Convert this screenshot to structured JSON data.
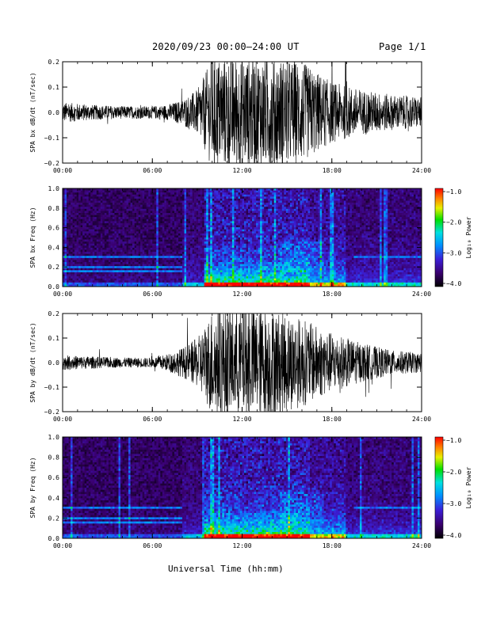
{
  "header": {
    "title": "2020/09/23  00:00–24:00 UT",
    "page": "Page 1/1"
  },
  "xlabel": "Universal Time (hh:mm)",
  "colors": {
    "trace": "#000000",
    "background": "#ffffff"
  },
  "chart_data": [
    {
      "type": "line",
      "name": "bx-waveform",
      "ylabel": "SPA bx dB/dt (nT/sec)",
      "xlim": [
        0,
        24
      ],
      "ylim": [
        -0.2,
        0.2
      ],
      "xticks": [
        "00:00",
        "06:00",
        "12:00",
        "18:00",
        "24:00"
      ],
      "yticks": [
        "0.2",
        "0.1",
        "0.0",
        "−0.1",
        "−0.2"
      ],
      "envelope": [
        [
          0,
          0.04
        ],
        [
          2,
          0.03
        ],
        [
          4,
          0.025
        ],
        [
          6,
          0.025
        ],
        [
          7,
          0.03
        ],
        [
          8,
          0.05
        ],
        [
          9,
          0.09
        ],
        [
          9.5,
          0.15
        ],
        [
          10,
          0.22
        ],
        [
          12,
          0.22
        ],
        [
          14,
          0.22
        ],
        [
          16,
          0.2
        ],
        [
          18,
          0.12
        ],
        [
          20,
          0.09
        ],
        [
          22,
          0.07
        ],
        [
          24,
          0.06
        ]
      ]
    },
    {
      "type": "heatmap",
      "name": "bx-spectrogram",
      "ylabel": "SPA bx Freq (Hz)",
      "colorbar_label": "Log₁₀ Power",
      "colorbar_ticks": [
        "−1.0",
        "−2.0",
        "−3.0",
        "−4.0"
      ],
      "clim": [
        -4.0,
        -1.0
      ],
      "xlim": [
        0,
        24
      ],
      "ylim": [
        0.0,
        1.0
      ],
      "xticks": [
        "00:00",
        "06:00",
        "12:00",
        "18:00",
        "24:00"
      ],
      "yticks": [
        "1.0",
        "0.8",
        "0.6",
        "0.4",
        "0.2",
        "0.0"
      ]
    },
    {
      "type": "line",
      "name": "by-waveform",
      "ylabel": "SPA by dB/dt (nT/sec)",
      "xlim": [
        0,
        24
      ],
      "ylim": [
        -0.2,
        0.2
      ],
      "xticks": [
        "00:00",
        "06:00",
        "12:00",
        "18:00",
        "24:00"
      ],
      "yticks": [
        "0.2",
        "0.1",
        "0.0",
        "−0.1",
        "−0.2"
      ],
      "envelope": [
        [
          0,
          0.03
        ],
        [
          2,
          0.025
        ],
        [
          4,
          0.02
        ],
        [
          6,
          0.02
        ],
        [
          7,
          0.035
        ],
        [
          8,
          0.06
        ],
        [
          9,
          0.1
        ],
        [
          9.5,
          0.15
        ],
        [
          10,
          0.22
        ],
        [
          12,
          0.22
        ],
        [
          14,
          0.22
        ],
        [
          16,
          0.18
        ],
        [
          18,
          0.12
        ],
        [
          20,
          0.08
        ],
        [
          22,
          0.05
        ],
        [
          24,
          0.04
        ]
      ]
    },
    {
      "type": "heatmap",
      "name": "by-spectrogram",
      "ylabel": "SPA by Freq (Hz)",
      "colorbar_label": "Log₁₀ Power",
      "colorbar_ticks": [
        "−1.0",
        "−2.0",
        "−3.0",
        "−4.0"
      ],
      "clim": [
        -4.0,
        -1.0
      ],
      "xlim": [
        0,
        24
      ],
      "ylim": [
        0.0,
        1.0
      ],
      "xticks": [
        "00:00",
        "06:00",
        "12:00",
        "18:00",
        "24:00"
      ],
      "yticks": [
        "1.0",
        "0.8",
        "0.6",
        "0.4",
        "0.2",
        "0.0"
      ]
    }
  ]
}
